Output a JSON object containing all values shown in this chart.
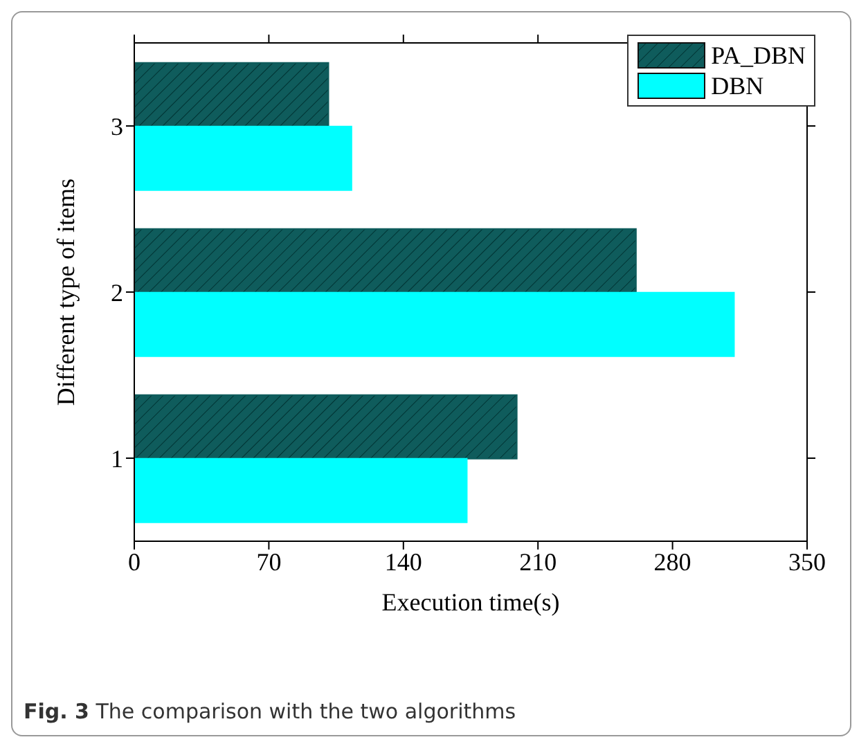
{
  "chart_data": {
    "type": "bar",
    "orientation": "horizontal",
    "xlabel": "Execution time(s)",
    "ylabel": "Different type of items",
    "categories": [
      "3",
      "2",
      "1"
    ],
    "series": [
      {
        "name": "PA_DBN",
        "color": "#0f5c5c",
        "values": [
          101,
          261,
          199
        ]
      },
      {
        "name": "DBN",
        "color": "#00ffff",
        "values": [
          113,
          312,
          173
        ]
      }
    ],
    "xlim": [
      0,
      350
    ],
    "xticks": [
      0,
      70,
      140,
      210,
      280,
      350
    ],
    "legend": "top right",
    "grid": false,
    "annotations": [
      "Fig. 3 The comparison with the two algorithms"
    ]
  }
}
